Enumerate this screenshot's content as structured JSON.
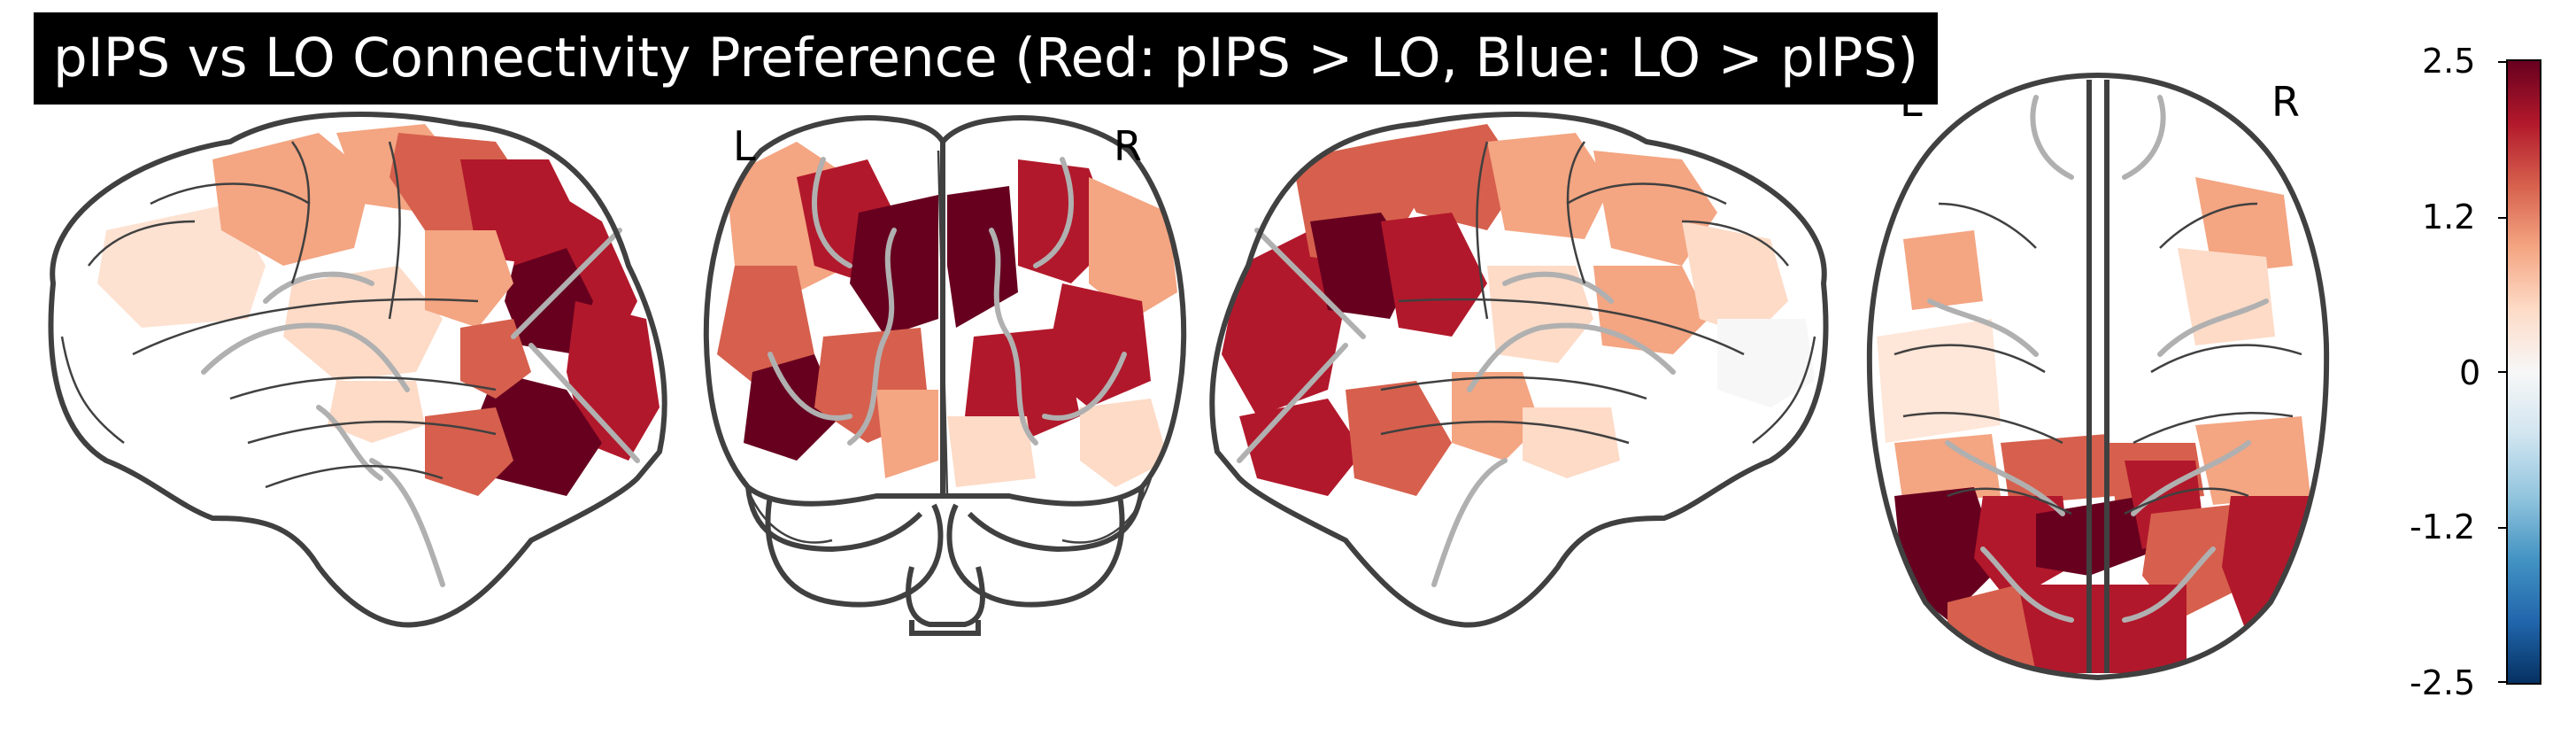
{
  "title": "pIPS vs LO Connectivity Preference (Red: pIPS > LO, Blue: LO > pIPS)",
  "views": {
    "coronal": {
      "left_label": "L",
      "right_label": "R"
    },
    "axial": {
      "left_label": "L",
      "right_label": "R"
    }
  },
  "colorbar": {
    "colormap": "RdBu_r",
    "range": [
      -2.5,
      2.5
    ],
    "ticks": [
      "2.5",
      "1.2",
      "0",
      "-1.2",
      "-2.5"
    ],
    "colors": {
      "max": "#67001f",
      "high": "#b2182b",
      "mid_high": "#d6604d",
      "low_high": "#f4a582",
      "near_zero_pos": "#fddbc7",
      "zero": "#f7f7f7",
      "near_zero_neg": "#d1e5f0",
      "low_low": "#92c5de",
      "mid_low": "#4393c3",
      "low": "#2166ac",
      "min": "#053061"
    }
  },
  "outline_color": "#404040",
  "sulcus_color": "#b0b0b0"
}
